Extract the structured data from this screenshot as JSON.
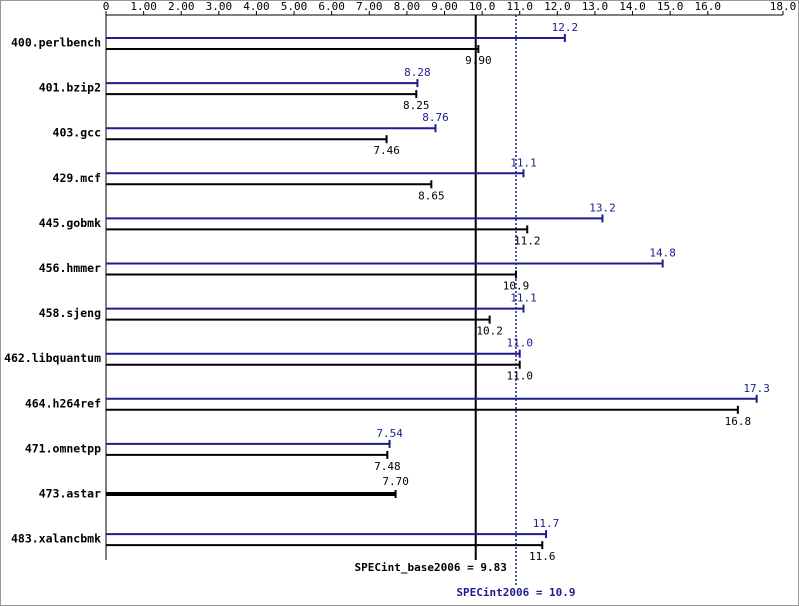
{
  "chart_data": {
    "type": "bar",
    "orientation": "horizontal",
    "categories": [
      "400.perlbench",
      "401.bzip2",
      "403.gcc",
      "429.mcf",
      "445.gobmk",
      "456.hmmer",
      "458.sjeng",
      "462.libquantum",
      "464.h264ref",
      "471.omnetpp",
      "473.astar",
      "483.xalancbmk"
    ],
    "series": [
      {
        "color": "#1c1c8c",
        "values": [
          12.2,
          8.28,
          8.76,
          11.1,
          13.2,
          14.8,
          11.1,
          11.0,
          17.3,
          7.54,
          null,
          11.7
        ],
        "value_labels": [
          "12.2",
          "8.28",
          "8.76",
          "11.1",
          "13.2",
          "14.8",
          "11.1",
          "11.0",
          "17.3",
          "7.54",
          null,
          "11.7"
        ]
      },
      {
        "color": "#000000",
        "values": [
          9.9,
          8.25,
          7.46,
          8.65,
          11.2,
          10.9,
          10.2,
          11.0,
          16.8,
          7.48,
          7.7,
          11.6
        ],
        "value_labels": [
          "9.90",
          "8.25",
          "7.46",
          "8.65",
          "11.2",
          "10.9",
          "10.2",
          "11.0",
          "16.8",
          "7.48",
          "7.70",
          "11.6"
        ]
      }
    ],
    "xlim": [
      0,
      18
    ],
    "xticks": [
      0,
      {
        "value": 1,
        "label": "1.00"
      },
      {
        "value": 2,
        "label": "2.00"
      },
      {
        "value": 3,
        "label": "3.00"
      },
      {
        "value": 4,
        "label": "4.00"
      },
      {
        "value": 5,
        "label": "5.00"
      },
      {
        "value": 6,
        "label": "6.00"
      },
      {
        "value": 7,
        "label": "7.00"
      },
      {
        "value": 8,
        "label": "8.00"
      },
      {
        "value": 9,
        "label": "9.00"
      },
      {
        "value": 10,
        "label": "10.0"
      },
      {
        "value": 11,
        "label": "11.0"
      },
      {
        "value": 12,
        "label": "12.0"
      },
      {
        "value": 13,
        "label": "13.0"
      },
      {
        "value": 14,
        "label": "14.0"
      },
      {
        "value": 15,
        "label": "15.0"
      },
      {
        "value": 16,
        "label": "16.0"
      },
      {
        "value": 18,
        "label": "18.0"
      }
    ],
    "reference_lines": [
      {
        "label": "SPECint_base2006 = 9.83",
        "value": 9.83,
        "color": "#000000",
        "style": "solid"
      },
      {
        "label": "SPECint2006 = 10.9",
        "value": 10.9,
        "color": "#1c1c8c",
        "style": "dotted"
      }
    ]
  }
}
